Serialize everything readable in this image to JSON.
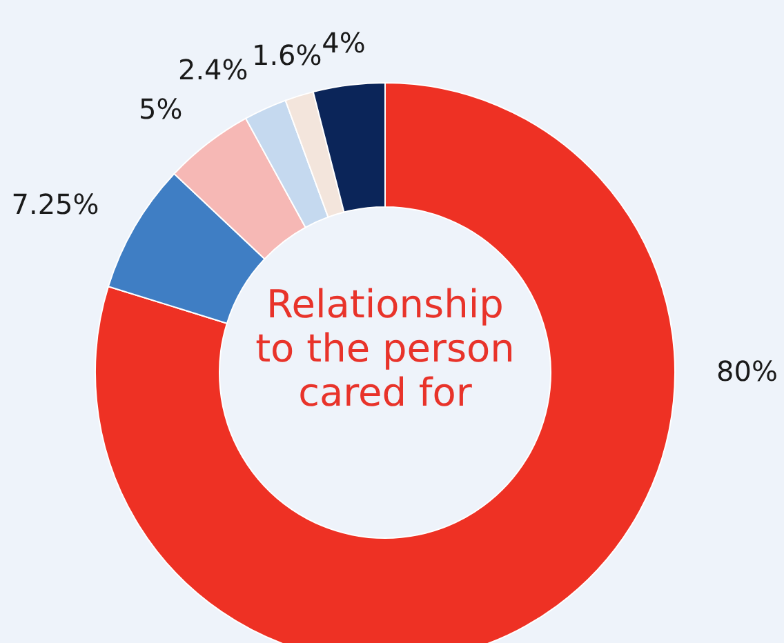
{
  "chart_data": {
    "type": "donut",
    "title": "Relationship to the person cared for",
    "categories": [
      null,
      null,
      null,
      null,
      null,
      null
    ],
    "values": [
      80,
      7.25,
      5,
      2.4,
      1.6,
      4
    ],
    "colors": [
      "#ee3124",
      "#3f7ec4",
      "#f6b8b5",
      "#c5d9ef",
      "#f3e5dc",
      "#0b2559"
    ],
    "value_labels": [
      "80%",
      "7.25%",
      "5%",
      "2.4%",
      "1.6%",
      "4%"
    ]
  }
}
